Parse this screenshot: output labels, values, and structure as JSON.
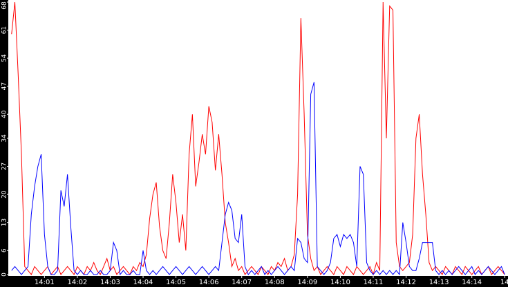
{
  "chart_data": {
    "type": "line",
    "x": [
      0,
      0.1,
      0.2,
      0.3,
      0.4,
      0.5,
      0.6,
      0.7,
      0.8,
      0.9,
      1,
      1.1,
      1.2,
      1.3,
      1.4,
      1.5,
      1.6,
      1.7,
      1.8,
      1.9,
      2,
      2.1,
      2.2,
      2.3,
      2.4,
      2.5,
      2.6,
      2.7,
      2.8,
      2.9,
      3,
      3.1,
      3.2,
      3.3,
      3.4,
      3.5,
      3.6,
      3.7,
      3.8,
      3.9,
      4,
      4.1,
      4.2,
      4.3,
      4.4,
      4.5,
      4.6,
      4.7,
      4.8,
      4.9,
      5,
      5.1,
      5.2,
      5.3,
      5.4,
      5.5,
      5.6,
      5.7,
      5.8,
      5.9,
      6,
      6.1,
      6.2,
      6.3,
      6.4,
      6.5,
      6.6,
      6.7,
      6.8,
      6.9,
      7,
      7.1,
      7.2,
      7.3,
      7.4,
      7.5,
      7.6,
      7.7,
      7.8,
      7.9,
      8,
      8.1,
      8.2,
      8.3,
      8.4,
      8.5,
      8.6,
      8.7,
      8.8,
      8.9,
      9,
      9.1,
      9.2,
      9.3,
      9.4,
      9.5,
      9.6,
      9.7,
      9.8,
      9.9,
      10,
      10.1,
      10.2,
      10.3,
      10.4,
      10.5,
      10.6,
      10.7,
      10.8,
      10.9,
      11,
      11.1,
      11.2,
      11.3,
      11.4,
      11.5,
      11.6,
      11.7,
      11.8,
      11.9,
      12,
      12.1,
      12.2,
      12.3,
      12.4,
      12.5,
      12.6,
      12.7,
      12.8,
      12.9,
      13,
      13.1,
      13.2,
      13.3,
      13.4,
      13.5,
      13.6,
      13.7,
      13.8,
      13.9,
      14,
      14.1,
      14.2,
      14.3,
      14.4,
      14.5,
      14.6,
      14.7,
      14.8,
      14.9,
      15
    ],
    "series": [
      {
        "color": "#ff0000",
        "values": [
          60,
          68,
          50,
          30,
          2,
          1,
          0,
          2,
          1,
          0,
          1,
          2,
          0,
          1,
          2,
          0,
          1,
          2,
          1,
          0,
          2,
          1,
          0,
          2,
          1,
          3,
          1,
          0,
          2,
          4,
          1,
          2,
          0,
          1,
          2,
          1,
          0,
          2,
          1,
          3,
          2,
          5,
          14,
          20,
          23,
          12,
          6,
          4,
          13,
          25,
          18,
          8,
          15,
          6,
          30,
          40,
          22,
          28,
          35,
          30,
          42,
          38,
          26,
          35,
          25,
          13,
          8,
          2,
          4,
          1,
          2,
          0,
          1,
          2,
          1,
          0,
          2,
          1,
          0,
          2,
          1,
          3,
          2,
          4,
          1,
          2,
          5,
          20,
          64,
          40,
          10,
          4,
          1,
          2,
          0,
          1,
          2,
          1,
          0,
          2,
          1,
          0,
          2,
          1,
          0,
          2,
          1,
          0,
          1,
          2,
          0,
          3,
          1,
          68,
          34,
          67,
          66,
          8,
          2,
          1,
          2,
          3,
          10,
          34,
          40,
          25,
          15,
          3,
          1,
          2,
          1,
          0,
          2,
          1,
          0,
          2,
          1,
          0,
          2,
          1,
          0,
          1,
          2,
          0,
          1,
          2,
          0,
          1,
          2,
          1,
          0
        ]
      },
      {
        "color": "#0000ff",
        "values": [
          1,
          2,
          1,
          0,
          1,
          2,
          15,
          22,
          27,
          30,
          10,
          2,
          0,
          0,
          1,
          21,
          17,
          25,
          12,
          1,
          0,
          1,
          0,
          0,
          1,
          0,
          0,
          1,
          0,
          0,
          1,
          8,
          6,
          0,
          1,
          0,
          0,
          1,
          0,
          0,
          6,
          1,
          0,
          1,
          0,
          1,
          2,
          1,
          0,
          1,
          2,
          1,
          0,
          1,
          2,
          1,
          0,
          1,
          2,
          1,
          0,
          1,
          2,
          1,
          8,
          15,
          18,
          16,
          9,
          8,
          15,
          2,
          0,
          1,
          0,
          1,
          2,
          0,
          1,
          0,
          1,
          2,
          1,
          0,
          1,
          2,
          1,
          9,
          8,
          4,
          3,
          45,
          48,
          2,
          1,
          0,
          1,
          3,
          9,
          10,
          7,
          10,
          9,
          10,
          8,
          2,
          27,
          25,
          3,
          1,
          0,
          1,
          0,
          1,
          0,
          1,
          0,
          1,
          0,
          13,
          8,
          2,
          1,
          1,
          4,
          8,
          8,
          8,
          8,
          1,
          0,
          1,
          0,
          1,
          0,
          1,
          2,
          1,
          0,
          1,
          2,
          0,
          1,
          0,
          1,
          2,
          1,
          0,
          1,
          2,
          0
        ]
      }
    ],
    "xlim": [
      -0.1,
      15.1
    ],
    "xticks": [
      {
        "value": 1,
        "label": "14:01"
      },
      {
        "value": 2,
        "label": "14:02"
      },
      {
        "value": 3,
        "label": "14:03"
      },
      {
        "value": 4,
        "label": "14:04"
      },
      {
        "value": 5,
        "label": "14:05"
      },
      {
        "value": 6,
        "label": "14:06"
      },
      {
        "value": 7,
        "label": "14:07"
      },
      {
        "value": 8,
        "label": "14:08"
      },
      {
        "value": 9,
        "label": "14:09"
      },
      {
        "value": 10,
        "label": "14:10"
      },
      {
        "value": 11,
        "label": "14:11"
      },
      {
        "value": 12,
        "label": "14:12"
      },
      {
        "value": 13,
        "label": "14:13"
      },
      {
        "value": 14,
        "label": "14:14"
      },
      {
        "value": 15,
        "label": "14"
      }
    ],
    "ylim": [
      0,
      68
    ],
    "yticks": [
      0,
      6,
      13,
      20,
      27,
      34,
      40,
      47,
      54,
      61,
      68
    ]
  }
}
